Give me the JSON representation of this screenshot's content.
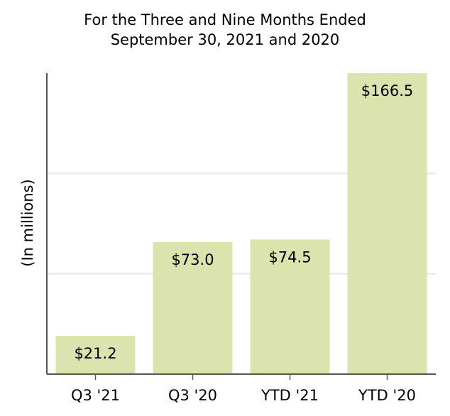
{
  "chart_data": {
    "type": "bar",
    "title": "For the Three and Nine Months Ended",
    "subtitle": "September 30, 2021 and 2020",
    "ylabel": "(In millions)",
    "xlabel": "",
    "categories": [
      "Q3 '21",
      "Q3 '20",
      "YTD '21",
      "YTD '20"
    ],
    "values": [
      21.2,
      73.0,
      74.5,
      166.5
    ],
    "data_labels": [
      "$21.2",
      "$73.0",
      "$74.5",
      "$166.5"
    ],
    "ylim": [
      0,
      166.5
    ],
    "grid": true,
    "bar_color": "#dbe4ae",
    "grid_color": "#e6e6e6",
    "axis_color": "#555555"
  }
}
